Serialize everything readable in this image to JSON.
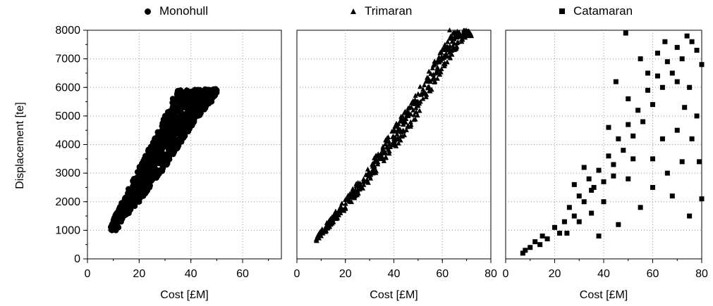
{
  "legend": [
    {
      "name": "Monohull",
      "marker": "circle"
    },
    {
      "name": "Trimaran",
      "marker": "triangle"
    },
    {
      "name": "Catamaran",
      "marker": "square"
    }
  ],
  "chart_data": [
    {
      "type": "scatter",
      "series_name": "Monohull",
      "marker": "circle",
      "xlabel": "Cost [£M]",
      "ylabel": "Displacement [te]",
      "xlim": [
        0,
        75
      ],
      "ylim": [
        0,
        8000
      ],
      "xticks": [
        0,
        20,
        40,
        60
      ],
      "yticks": [
        0,
        1000,
        2000,
        3000,
        4000,
        5000,
        6000,
        7000,
        8000
      ],
      "grid": true,
      "trend": {
        "x_min": 9,
        "x_max": 50,
        "lower": [
          [
            9,
            1000
          ],
          [
            20,
            2000
          ],
          [
            30,
            3200
          ],
          [
            40,
            4600
          ],
          [
            50,
            5800
          ]
        ],
        "upper": [
          [
            9,
            1200
          ],
          [
            20,
            3200
          ],
          [
            30,
            5000
          ],
          [
            35,
            5900
          ],
          [
            50,
            5950
          ]
        ]
      },
      "points": [
        [
          9.5,
          1000
        ],
        [
          10,
          1050
        ],
        [
          11,
          1000
        ],
        [
          12,
          1100
        ],
        [
          13,
          1300
        ],
        [
          14,
          1500
        ],
        [
          15,
          1700
        ],
        [
          16,
          1600
        ],
        [
          17,
          2000
        ],
        [
          18,
          2200
        ],
        [
          19,
          2100
        ],
        [
          20,
          2400
        ],
        [
          21,
          2600
        ],
        [
          22,
          2800
        ],
        [
          23,
          2700
        ],
        [
          24,
          3000
        ],
        [
          25,
          3200
        ],
        [
          26,
          3300
        ],
        [
          27,
          3600
        ],
        [
          28,
          3800
        ],
        [
          29,
          3700
        ],
        [
          30,
          4100
        ],
        [
          31,
          4300
        ],
        [
          32,
          4500
        ],
        [
          33,
          4400
        ],
        [
          34,
          4700
        ],
        [
          35,
          4900
        ],
        [
          36,
          5100
        ],
        [
          37,
          5000
        ],
        [
          38,
          5300
        ],
        [
          39,
          5400
        ],
        [
          40,
          5500
        ],
        [
          41,
          5400
        ],
        [
          42,
          5600
        ],
        [
          43,
          5700
        ],
        [
          44,
          5600
        ],
        [
          45,
          5800
        ],
        [
          47,
          5700
        ],
        [
          50,
          5900
        ],
        [
          18,
          2800
        ],
        [
          22,
          3500
        ],
        [
          26,
          4200
        ],
        [
          30,
          5000
        ],
        [
          33,
          5600
        ],
        [
          36,
          5900
        ],
        [
          20,
          2000
        ],
        [
          24,
          2500
        ],
        [
          28,
          3100
        ],
        [
          32,
          3800
        ],
        [
          36,
          4500
        ],
        [
          40,
          5000
        ],
        [
          44,
          5300
        ],
        [
          48,
          5500
        ]
      ]
    },
    {
      "type": "scatter",
      "series_name": "Trimaran",
      "marker": "triangle",
      "xlabel": "Cost [£M]",
      "ylabel": "",
      "xlim": [
        0,
        80
      ],
      "ylim": [
        0,
        8000
      ],
      "xticks": [
        0,
        20,
        40,
        60,
        80
      ],
      "yticks": [
        0,
        1000,
        2000,
        3000,
        4000,
        5000,
        6000,
        7000,
        8000
      ],
      "grid": true,
      "trend": {
        "x_min": 8,
        "x_max": 72,
        "lower": [
          [
            8,
            600
          ],
          [
            20,
            1700
          ],
          [
            30,
            2700
          ],
          [
            40,
            3800
          ],
          [
            50,
            5000
          ],
          [
            60,
            6600
          ],
          [
            70,
            7800
          ]
        ],
        "upper": [
          [
            8,
            800
          ],
          [
            20,
            2100
          ],
          [
            30,
            3300
          ],
          [
            40,
            4600
          ],
          [
            50,
            5900
          ],
          [
            60,
            7400
          ],
          [
            65,
            8000
          ]
        ]
      },
      "points": [
        [
          8,
          650
        ],
        [
          10,
          800
        ],
        [
          12,
          1000
        ],
        [
          14,
          1200
        ],
        [
          16,
          1400
        ],
        [
          18,
          1600
        ],
        [
          20,
          1800
        ],
        [
          22,
          2000
        ],
        [
          24,
          2200
        ],
        [
          26,
          2500
        ],
        [
          28,
          2700
        ],
        [
          30,
          3000
        ],
        [
          32,
          3200
        ],
        [
          34,
          3500
        ],
        [
          36,
          3700
        ],
        [
          38,
          4000
        ],
        [
          40,
          4200
        ],
        [
          42,
          4500
        ],
        [
          44,
          4700
        ],
        [
          46,
          5000
        ],
        [
          48,
          5200
        ],
        [
          50,
          5500
        ],
        [
          52,
          5600
        ],
        [
          54,
          6000
        ],
        [
          56,
          6300
        ],
        [
          58,
          6700
        ],
        [
          60,
          7000
        ],
        [
          62,
          7300
        ],
        [
          64,
          7600
        ],
        [
          66,
          7900
        ],
        [
          68,
          7600
        ],
        [
          72,
          7800
        ],
        [
          63,
          8000
        ],
        [
          25,
          2400
        ],
        [
          35,
          3600
        ],
        [
          45,
          4900
        ],
        [
          55,
          6200
        ]
      ]
    },
    {
      "type": "scatter",
      "series_name": "Catamaran",
      "marker": "square",
      "xlabel": "Cost [£M]",
      "ylabel": "",
      "xlim": [
        0,
        80
      ],
      "ylim": [
        0,
        8000
      ],
      "xticks": [
        0,
        20,
        40,
        60,
        80
      ],
      "yticks": [
        0,
        1000,
        2000,
        3000,
        4000,
        5000,
        6000,
        7000,
        8000
      ],
      "grid": true,
      "points": [
        [
          7,
          200
        ],
        [
          8,
          300
        ],
        [
          10,
          400
        ],
        [
          12,
          600
        ],
        [
          14,
          500
        ],
        [
          15,
          800
        ],
        [
          17,
          700
        ],
        [
          20,
          1100
        ],
        [
          22,
          900
        ],
        [
          24,
          1300
        ],
        [
          26,
          1800
        ],
        [
          28,
          1500
        ],
        [
          30,
          2200
        ],
        [
          32,
          2000
        ],
        [
          34,
          2800
        ],
        [
          36,
          2500
        ],
        [
          38,
          3100
        ],
        [
          40,
          2700
        ],
        [
          42,
          3600
        ],
        [
          44,
          3300
        ],
        [
          46,
          4200
        ],
        [
          48,
          3800
        ],
        [
          50,
          4700
        ],
        [
          52,
          4300
        ],
        [
          54,
          5200
        ],
        [
          56,
          4800
        ],
        [
          58,
          5900
        ],
        [
          60,
          5400
        ],
        [
          62,
          6400
        ],
        [
          64,
          6000
        ],
        [
          66,
          6900
        ],
        [
          68,
          6500
        ],
        [
          70,
          7400
        ],
        [
          72,
          7000
        ],
        [
          74,
          7800
        ],
        [
          76,
          7600
        ],
        [
          78,
          7300
        ],
        [
          80,
          6800
        ],
        [
          49,
          7900
        ],
        [
          45,
          6200
        ],
        [
          55,
          7000
        ],
        [
          65,
          7600
        ],
        [
          75,
          6000
        ],
        [
          78,
          5000
        ],
        [
          70,
          4500
        ],
        [
          60,
          3500
        ],
        [
          50,
          2800
        ],
        [
          40,
          2000
        ],
        [
          30,
          1300
        ],
        [
          25,
          900
        ],
        [
          60,
          2500
        ],
        [
          66,
          3000
        ],
        [
          72,
          3400
        ],
        [
          80,
          2100
        ],
        [
          75,
          1500
        ],
        [
          68,
          2200
        ],
        [
          55,
          1800
        ],
        [
          46,
          1200
        ],
        [
          38,
          800
        ],
        [
          35,
          1600
        ],
        [
          28,
          2600
        ],
        [
          32,
          3200
        ],
        [
          42,
          4600
        ],
        [
          50,
          5600
        ],
        [
          58,
          6500
        ],
        [
          62,
          7200
        ],
        [
          70,
          6200
        ],
        [
          76,
          4200
        ],
        [
          79,
          3400
        ],
        [
          35,
          2400
        ],
        [
          44,
          2900
        ],
        [
          52,
          3500
        ],
        [
          64,
          4200
        ],
        [
          73,
          5300
        ]
      ]
    }
  ]
}
